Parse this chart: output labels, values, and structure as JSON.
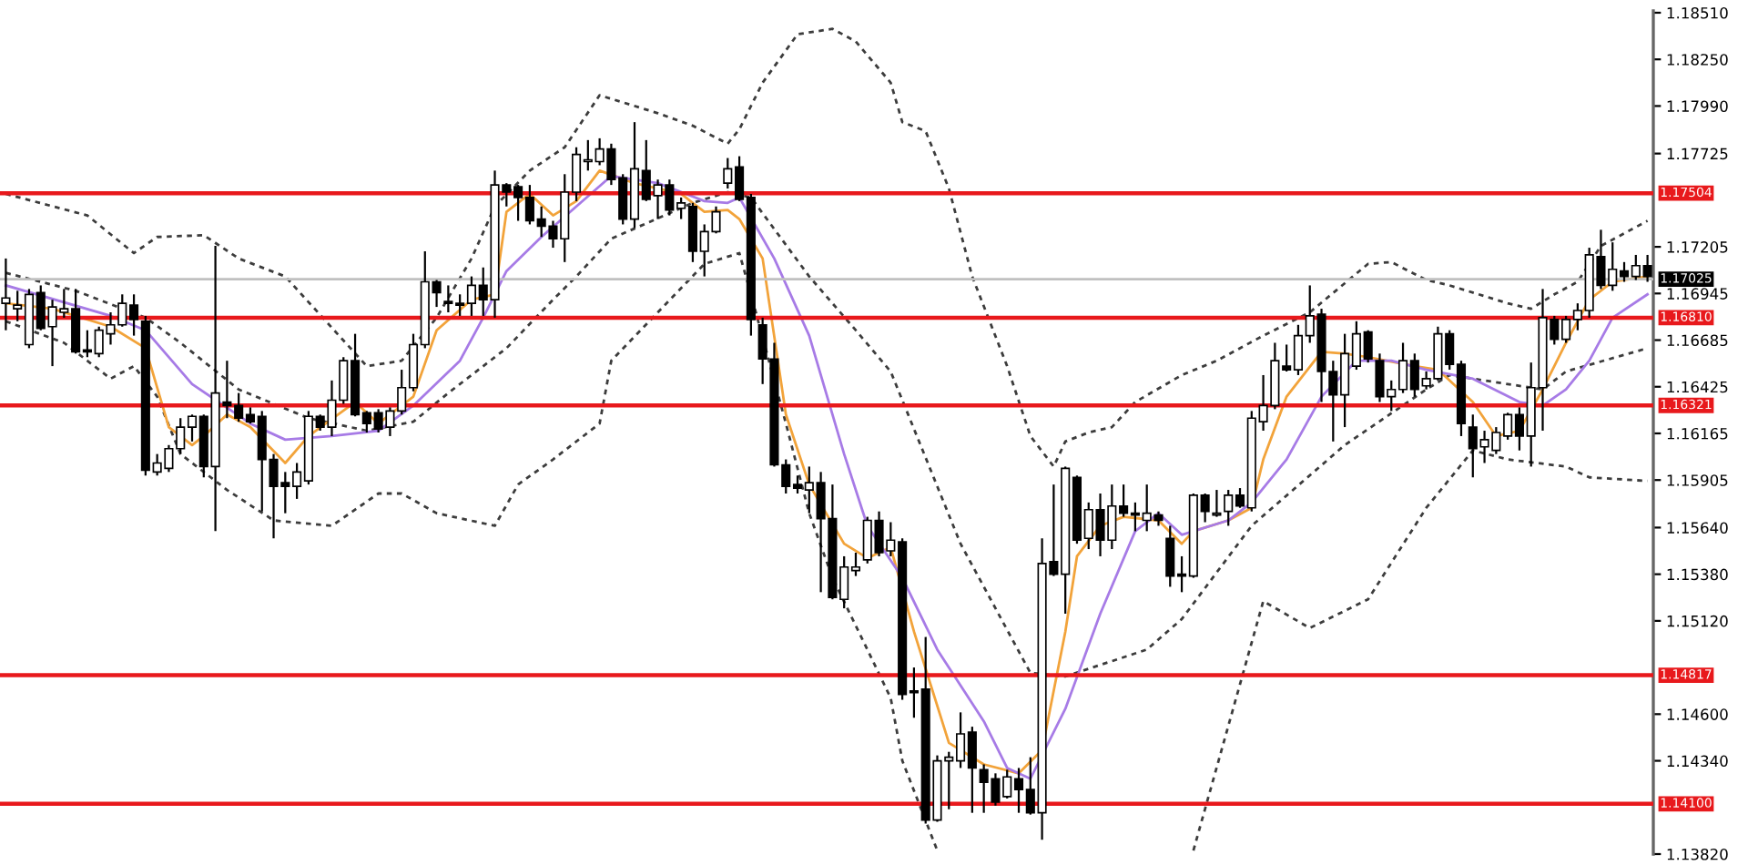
{
  "chart_data": {
    "type": "candlestick",
    "categories": [
      null,
      null,
      null,
      null,
      null,
      null,
      null,
      null,
      null,
      null,
      null,
      null,
      null,
      null,
      null,
      null,
      null,
      null,
      null,
      null,
      null,
      null,
      null,
      null,
      null,
      null,
      null,
      null,
      null,
      null,
      null,
      null,
      null,
      null,
      null,
      null,
      null,
      null,
      null,
      null,
      null,
      null,
      null,
      null,
      null,
      null,
      null,
      null,
      null,
      null,
      null,
      null,
      null,
      null,
      null,
      null,
      null,
      null,
      null,
      null,
      null,
      null,
      null,
      null,
      null,
      null,
      null,
      null,
      null,
      null,
      null,
      null,
      null,
      null,
      null,
      null,
      null,
      null,
      null,
      null,
      null,
      null,
      null,
      null,
      null,
      null,
      null,
      null,
      null,
      null,
      null,
      null,
      null,
      null,
      null,
      null,
      null,
      null,
      null,
      null,
      null,
      null,
      null,
      null,
      null,
      null,
      null,
      null,
      null,
      null,
      null,
      null,
      null,
      null,
      null,
      null,
      null,
      null,
      null,
      null,
      null,
      null,
      null,
      null,
      null,
      null,
      null,
      null,
      null,
      null,
      null,
      null,
      null,
      null,
      null,
      null,
      null,
      null,
      null,
      null,
      null,
      null
    ],
    "ohlc": [
      [
        1.1689,
        1.1714,
        1.1674,
        1.1692
      ],
      [
        1.1686,
        1.1696,
        1.1679,
        1.1688
      ],
      [
        1.1666,
        1.1697,
        1.1664,
        1.1694
      ],
      [
        1.1695,
        1.1699,
        1.1674,
        1.1675
      ],
      [
        1.1676,
        1.1691,
        1.1654,
        1.1687
      ],
      [
        1.1684,
        1.1697,
        1.1681,
        1.1686
      ],
      [
        1.1686,
        1.1697,
        1.1661,
        1.1662
      ],
      [
        1.1663,
        1.1674,
        1.1659,
        1.1662
      ],
      [
        1.1661,
        1.1676,
        1.1659,
        1.1674
      ],
      [
        1.1672,
        1.1684,
        1.1666,
        1.1677
      ],
      [
        1.1677,
        1.1694,
        1.1676,
        1.1689
      ],
      [
        1.1688,
        1.1694,
        1.1671,
        1.168
      ],
      [
        1.1679,
        1.1682,
        1.1593,
        1.1596
      ],
      [
        1.1595,
        1.1605,
        1.1593,
        1.16
      ],
      [
        1.1597,
        1.161,
        1.1595,
        1.1608
      ],
      [
        1.1608,
        1.1625,
        1.1605,
        1.162
      ],
      [
        1.162,
        1.1627,
        1.1612,
        1.1626
      ],
      [
        1.1626,
        1.1627,
        1.1592,
        1.1598
      ],
      [
        1.1598,
        1.1721,
        1.1562,
        1.1639
      ],
      [
        1.1634,
        1.1657,
        1.1625,
        1.1632
      ],
      [
        1.1632,
        1.1639,
        1.1623,
        1.1625
      ],
      [
        1.1627,
        1.1631,
        1.1622,
        1.1623
      ],
      [
        1.1626,
        1.1629,
        1.1573,
        1.1602
      ],
      [
        1.1602,
        1.1605,
        1.1558,
        1.1587
      ],
      [
        1.1589,
        1.1595,
        1.1572,
        1.1587
      ],
      [
        1.1587,
        1.16,
        1.158,
        1.1595
      ],
      [
        1.159,
        1.1629,
        1.1588,
        1.1626
      ],
      [
        1.1626,
        1.1627,
        1.1618,
        1.162
      ],
      [
        1.162,
        1.1646,
        1.1615,
        1.1635
      ],
      [
        1.1635,
        1.1659,
        1.1633,
        1.1657
      ],
      [
        1.1657,
        1.1672,
        1.1626,
        1.1627
      ],
      [
        1.1628,
        1.1629,
        1.1617,
        1.1622
      ],
      [
        1.1628,
        1.163,
        1.1617,
        1.1619
      ],
      [
        1.162,
        1.1631,
        1.1615,
        1.1629
      ],
      [
        1.1629,
        1.1652,
        1.1627,
        1.1642
      ],
      [
        1.1642,
        1.1672,
        1.164,
        1.1666
      ],
      [
        1.1666,
        1.1718,
        1.1664,
        1.1701
      ],
      [
        1.1701,
        1.1702,
        1.1687,
        1.1695
      ],
      [
        1.169,
        1.1699,
        1.1684,
        1.1689
      ],
      [
        1.1689,
        1.1694,
        1.1682,
        1.1688
      ],
      [
        1.1689,
        1.1704,
        1.1682,
        1.1699
      ],
      [
        1.1699,
        1.1709,
        1.1682,
        1.1691
      ],
      [
        1.1691,
        1.1763,
        1.1681,
        1.1755
      ],
      [
        1.1755,
        1.1756,
        1.1743,
        1.1751
      ],
      [
        1.1754,
        1.1755,
        1.1735,
        1.1748
      ],
      [
        1.1748,
        1.1755,
        1.1733,
        1.1735
      ],
      [
        1.1736,
        1.1743,
        1.1726,
        1.1732
      ],
      [
        1.1732,
        1.1735,
        1.172,
        1.1725
      ],
      [
        1.1725,
        1.1761,
        1.1712,
        1.1751
      ],
      [
        1.1751,
        1.1776,
        1.1746,
        1.1772
      ],
      [
        1.1768,
        1.178,
        1.1763,
        1.1769
      ],
      [
        1.1768,
        1.1781,
        1.1766,
        1.1775
      ],
      [
        1.1775,
        1.1778,
        1.1755,
        1.1758
      ],
      [
        1.1759,
        1.1761,
        1.1733,
        1.1736
      ],
      [
        1.1736,
        1.179,
        1.1731,
        1.1764
      ],
      [
        1.1763,
        1.178,
        1.1746,
        1.1747
      ],
      [
        1.1749,
        1.1758,
        1.1736,
        1.1755
      ],
      [
        1.1755,
        1.1758,
        1.1738,
        1.1741
      ],
      [
        1.1742,
        1.1748,
        1.1736,
        1.1745
      ],
      [
        1.1743,
        1.1745,
        1.1712,
        1.1718
      ],
      [
        1.1718,
        1.1733,
        1.1704,
        1.1729
      ],
      [
        1.1729,
        1.1743,
        1.1728,
        1.174
      ],
      [
        1.1756,
        1.177,
        1.1753,
        1.1764
      ],
      [
        1.1765,
        1.1771,
        1.1746,
        1.1747
      ],
      [
        1.1748,
        1.175,
        1.1671,
        1.168
      ],
      [
        1.1677,
        1.1681,
        1.1644,
        1.1658
      ],
      [
        1.1658,
        1.1667,
        1.1598,
        1.1599
      ],
      [
        1.1599,
        1.1602,
        1.1583,
        1.1587
      ],
      [
        1.1588,
        1.1593,
        1.1583,
        1.1586
      ],
      [
        1.1585,
        1.1598,
        1.1572,
        1.1589
      ],
      [
        1.1589,
        1.1595,
        1.1528,
        1.1569
      ],
      [
        1.1569,
        1.1588,
        1.1524,
        1.1525
      ],
      [
        1.1524,
        1.1548,
        1.1519,
        1.1542
      ],
      [
        1.154,
        1.155,
        1.1537,
        1.1542
      ],
      [
        1.1546,
        1.157,
        1.1544,
        1.1568
      ],
      [
        1.1568,
        1.1573,
        1.1548,
        1.155
      ],
      [
        1.1551,
        1.1567,
        1.1548,
        1.1557
      ],
      [
        1.1556,
        1.1558,
        1.1468,
        1.1471
      ],
      [
        1.1473,
        1.1486,
        1.1458,
        1.1472
      ],
      [
        1.1474,
        1.1503,
        1.1399,
        1.1401
      ],
      [
        1.1401,
        1.1437,
        1.14,
        1.1434
      ],
      [
        1.1434,
        1.1439,
        1.1407,
        1.1436
      ],
      [
        1.1434,
        1.1461,
        1.143,
        1.1449
      ],
      [
        1.145,
        1.1453,
        1.1405,
        1.143
      ],
      [
        1.1429,
        1.1432,
        1.1405,
        1.1422
      ],
      [
        1.1424,
        1.1427,
        1.1409,
        1.1411
      ],
      [
        1.1414,
        1.1429,
        1.1413,
        1.1425
      ],
      [
        1.1424,
        1.143,
        1.1405,
        1.1418
      ],
      [
        1.1418,
        1.1436,
        1.1404,
        1.1405
      ],
      [
        1.1405,
        1.1558,
        1.139,
        1.1544
      ],
      [
        1.1545,
        1.1588,
        1.1537,
        1.1538
      ],
      [
        1.1538,
        1.1598,
        1.1516,
        1.1597
      ],
      [
        1.1592,
        1.1593,
        1.1555,
        1.1557
      ],
      [
        1.1558,
        1.1578,
        1.1552,
        1.1574
      ],
      [
        1.1574,
        1.1583,
        1.1548,
        1.1557
      ],
      [
        1.1557,
        1.1588,
        1.1552,
        1.1576
      ],
      [
        1.1576,
        1.1588,
        1.157,
        1.1572
      ],
      [
        1.1572,
        1.1578,
        1.1562,
        1.1571
      ],
      [
        1.1568,
        1.1588,
        1.1562,
        1.1572
      ],
      [
        1.1571,
        1.1573,
        1.1565,
        1.1568
      ],
      [
        1.1558,
        1.1565,
        1.1531,
        1.1537
      ],
      [
        1.1538,
        1.1548,
        1.1528,
        1.1537
      ],
      [
        1.1537,
        1.1583,
        1.1536,
        1.1582
      ],
      [
        1.1582,
        1.1583,
        1.1567,
        1.1573
      ],
      [
        1.1571,
        1.1585,
        1.157,
        1.1572
      ],
      [
        1.1573,
        1.1585,
        1.1565,
        1.1582
      ],
      [
        1.1582,
        1.1586,
        1.1575,
        1.1576
      ],
      [
        1.1575,
        1.1629,
        1.1573,
        1.1625
      ],
      [
        1.1623,
        1.1649,
        1.1618,
        1.1632
      ],
      [
        1.1632,
        1.1667,
        1.163,
        1.1657
      ],
      [
        1.1654,
        1.1666,
        1.1651,
        1.1652
      ],
      [
        1.1652,
        1.1677,
        1.1649,
        1.1671
      ],
      [
        1.1671,
        1.1699,
        1.1667,
        1.1682
      ],
      [
        1.1683,
        1.1686,
        1.1634,
        1.1651
      ],
      [
        1.1651,
        1.1657,
        1.1612,
        1.1638
      ],
      [
        1.1638,
        1.1672,
        1.162,
        1.1661
      ],
      [
        1.1654,
        1.1679,
        1.1652,
        1.1672
      ],
      [
        1.1673,
        1.1674,
        1.1656,
        1.1658
      ],
      [
        1.1657,
        1.1661,
        1.1634,
        1.1637
      ],
      [
        1.1637,
        1.1646,
        1.1629,
        1.1641
      ],
      [
        1.1641,
        1.1667,
        1.1639,
        1.1657
      ],
      [
        1.1657,
        1.1661,
        1.1637,
        1.1641
      ],
      [
        1.1643,
        1.1651,
        1.1641,
        1.1647
      ],
      [
        1.1647,
        1.1676,
        1.1646,
        1.1672
      ],
      [
        1.1672,
        1.1674,
        1.1652,
        1.1655
      ],
      [
        1.1655,
        1.1657,
        1.1615,
        1.1622
      ],
      [
        1.162,
        1.1627,
        1.1592,
        1.1608
      ],
      [
        1.1609,
        1.1618,
        1.16,
        1.1613
      ],
      [
        1.1607,
        1.162,
        1.1605,
        1.1617
      ],
      [
        1.1615,
        1.1628,
        1.1613,
        1.1627
      ],
      [
        1.1627,
        1.1631,
        1.1607,
        1.1615
      ],
      [
        1.1615,
        1.1656,
        1.1598,
        1.1642
      ],
      [
        1.1642,
        1.1697,
        1.1618,
        1.1681
      ],
      [
        1.168,
        1.1682,
        1.1666,
        1.1669
      ],
      [
        1.1669,
        1.1682,
        1.1667,
        1.168
      ],
      [
        1.168,
        1.1689,
        1.1674,
        1.1685
      ],
      [
        1.1685,
        1.172,
        1.1681,
        1.1716
      ],
      [
        1.1715,
        1.173,
        1.1697,
        1.1699
      ],
      [
        1.1699,
        1.1723,
        1.1696,
        1.1708
      ],
      [
        1.1707,
        1.1712,
        1.1701,
        1.1704
      ],
      [
        1.1704,
        1.1716,
        1.1702,
        1.171
      ],
      [
        1.171,
        1.1716,
        1.1701,
        1.1704
      ]
    ],
    "series": [
      {
        "type": "line",
        "color": "#3c3c3c",
        "line_style": "dotted",
        "values": [
          1.175,
          null,
          null,
          null,
          null,
          null,
          null,
          1.1738,
          null,
          null,
          null,
          1.1717,
          null,
          1.1726,
          null,
          null,
          null,
          1.1727,
          null,
          null,
          1.1714,
          null,
          null,
          null,
          1.1704,
          null,
          null,
          null,
          null,
          null,
          null,
          1.1654,
          null,
          null,
          1.1657,
          null,
          null,
          1.1681,
          null,
          null,
          1.1714,
          null,
          1.1743,
          null,
          null,
          1.1763,
          null,
          null,
          1.1776,
          null,
          null,
          1.1805,
          null,
          null,
          null,
          null,
          1.1795,
          null,
          null,
          1.1788,
          null,
          null,
          1.1778,
          1.1786,
          null,
          1.1812,
          null,
          null,
          1.1839,
          null,
          null,
          1.1842,
          null,
          1.1835,
          null,
          null,
          1.1812,
          1.179,
          null,
          1.1785,
          null,
          1.1753,
          null,
          1.1704,
          null,
          null,
          1.1654,
          null,
          1.1615,
          null,
          1.1598,
          1.1612,
          null,
          1.1617,
          null,
          1.162,
          null,
          1.1634,
          null,
          null,
          null,
          1.1649,
          null,
          null,
          1.1657,
          null,
          null,
          null,
          1.1671,
          null,
          null,
          null,
          1.1684,
          null,
          null,
          null,
          null,
          1.1711,
          null,
          1.1712,
          null,
          null,
          1.1702,
          null,
          1.1699,
          null,
          null,
          null,
          null,
          1.1689,
          null,
          1.1686,
          null,
          1.1694,
          null,
          1.1701,
          null,
          1.1721,
          null,
          null,
          null,
          1.1735
        ]
      },
      {
        "type": "line",
        "color": "#3c3c3c",
        "line_style": "dotted",
        "values": [
          1.1706,
          null,
          null,
          null,
          null,
          null,
          1.1696,
          null,
          null,
          null,
          null,
          null,
          1.1681,
          null,
          null,
          1.1667,
          null,
          null,
          null,
          null,
          1.1641,
          null,
          null,
          null,
          null,
          null,
          1.1625,
          null,
          null,
          null,
          null,
          1.1618,
          null,
          null,
          null,
          1.1623,
          null,
          null,
          1.1639,
          null,
          null,
          null,
          null,
          1.1664,
          null,
          null,
          null,
          1.1691,
          null,
          1.1704,
          null,
          null,
          1.1725,
          null,
          null,
          null,
          null,
          null,
          null,
          1.1745,
          null,
          null,
          1.1751,
          null,
          1.1748,
          null,
          null,
          null,
          null,
          1.1704,
          null,
          null,
          null,
          1.1674,
          null,
          null,
          1.1651,
          null,
          null,
          null,
          null,
          null,
          1.1555,
          null,
          null,
          null,
          null,
          null,
          1.1483,
          null,
          null,
          1.1481,
          null,
          null,
          null,
          null,
          null,
          null,
          1.1496,
          null,
          null,
          1.1513,
          null,
          null,
          null,
          null,
          null,
          1.1565,
          null,
          null,
          null,
          null,
          null,
          null,
          null,
          1.161,
          null,
          null,
          null,
          null,
          null,
          null,
          1.1641,
          null,
          1.1649,
          null,
          null,
          null,
          null,
          1.1644,
          null,
          null,
          1.1641,
          null,
          1.1651,
          null,
          null,
          null,
          null,
          null,
          null,
          1.1664
        ]
      },
      {
        "type": "line",
        "color": "#3c3c3c",
        "line_style": "dotted",
        "values": [
          1.1679,
          null,
          null,
          null,
          null,
          1.1667,
          null,
          null,
          null,
          1.1647,
          null,
          1.1654,
          null,
          1.1637,
          null,
          1.1605,
          null,
          null,
          null,
          1.1585,
          null,
          null,
          null,
          1.1568,
          null,
          null,
          null,
          null,
          1.1565,
          null,
          null,
          null,
          1.1583,
          null,
          1.1583,
          null,
          null,
          1.1572,
          null,
          null,
          null,
          null,
          1.1565,
          null,
          1.1588,
          null,
          null,
          1.1602,
          null,
          null,
          null,
          1.1622,
          1.1657,
          null,
          null,
          null,
          1.1684,
          null,
          null,
          null,
          1.1711,
          null,
          null,
          1.1717,
          1.1694,
          null,
          null,
          1.1622,
          null,
          1.1572,
          null,
          1.1536,
          null,
          null,
          1.1496,
          null,
          1.1469,
          1.1434,
          null,
          null,
          1.1384,
          null,
          null,
          null,
          null,
          null,
          null,
          null,
          null,
          null,
          null,
          null,
          null,
          null,
          null,
          null,
          null,
          null,
          null,
          null,
          null,
          null,
          null,
          null,
          null,
          null,
          null,
          null,
          null,
          null,
          null,
          null,
          null,
          null,
          null,
          null,
          null,
          null,
          null,
          null,
          null,
          null,
          null,
          null,
          null,
          null,
          null,
          null,
          null,
          null,
          null,
          null,
          null,
          null,
          null,
          null,
          null,
          null,
          null,
          null,
          null,
          null
        ]
      },
      {
        "type": "line",
        "color": "#3c3c3c",
        "line_style": "dotted",
        "values": [
          null,
          null,
          null,
          null,
          null,
          null,
          null,
          null,
          null,
          null,
          null,
          null,
          null,
          null,
          null,
          null,
          null,
          null,
          null,
          null,
          null,
          null,
          null,
          null,
          null,
          null,
          null,
          null,
          null,
          null,
          null,
          null,
          null,
          null,
          null,
          null,
          null,
          null,
          null,
          null,
          null,
          null,
          null,
          null,
          null,
          null,
          null,
          null,
          null,
          null,
          null,
          null,
          null,
          null,
          null,
          null,
          null,
          null,
          null,
          null,
          null,
          null,
          null,
          null,
          null,
          null,
          null,
          null,
          null,
          null,
          null,
          null,
          null,
          null,
          null,
          null,
          null,
          null,
          null,
          null,
          null,
          null,
          null,
          null,
          null,
          null,
          null,
          null,
          null,
          null,
          null,
          null,
          null,
          null,
          null,
          null,
          null,
          null,
          null,
          null,
          null,
          null,
          1.1384,
          null,
          null,
          null,
          null,
          null,
          1.1523,
          null,
          null,
          null,
          1.1508,
          null,
          null,
          null,
          null,
          1.1524,
          null,
          null,
          null,
          null,
          1.1575,
          null,
          null,
          null,
          1.1607,
          null,
          null,
          1.1602,
          null,
          null,
          null,
          null,
          1.1598,
          null,
          1.1592,
          null,
          null,
          null,
          null,
          1.159
        ]
      },
      {
        "type": "line",
        "color": "#f2a33a",
        "values": [
          1.1689,
          null,
          null,
          null,
          1.1686,
          null,
          null,
          null,
          null,
          1.1676,
          null,
          null,
          1.1664,
          null,
          1.162,
          null,
          1.161,
          1.1615,
          null,
          1.1627,
          null,
          1.162,
          null,
          null,
          1.16,
          null,
          1.1615,
          null,
          null,
          null,
          1.1634,
          null,
          1.1622,
          null,
          null,
          1.1637,
          null,
          1.1674,
          null,
          null,
          1.1691,
          null,
          1.1694,
          1.174,
          null,
          1.175,
          null,
          1.1738,
          null,
          1.1746,
          null,
          1.1763,
          null,
          null,
          1.1756,
          null,
          null,
          null,
          1.175,
          null,
          1.174,
          null,
          1.1741,
          1.1736,
          null,
          1.1714,
          null,
          1.1627,
          null,
          1.1588,
          null,
          null,
          1.1555,
          null,
          1.1547,
          null,
          1.1553,
          null,
          1.1506,
          null,
          null,
          1.1444,
          null,
          null,
          1.1432,
          null,
          null,
          1.1427,
          null,
          1.144,
          null,
          1.1506,
          1.1548,
          null,
          1.1565,
          null,
          1.157,
          null,
          null,
          1.1568,
          null,
          1.1555,
          1.1562,
          null,
          null,
          1.1568,
          null,
          1.1575,
          1.1602,
          null,
          1.1637,
          null,
          null,
          1.1662,
          null,
          1.1661,
          null,
          1.1659,
          null,
          null,
          null,
          1.1654,
          null,
          1.1652,
          null,
          null,
          1.1634,
          null,
          1.1615,
          null,
          1.1618,
          null,
          1.1641,
          null,
          1.1667,
          null,
          1.1691,
          null,
          1.1701,
          null,
          null,
          1.1704
        ]
      },
      {
        "type": "line",
        "color": "#a77be6",
        "values": [
          1.1699,
          null,
          null,
          null,
          null,
          null,
          null,
          null,
          null,
          1.1682,
          null,
          null,
          1.1674,
          null,
          null,
          null,
          1.1644,
          null,
          null,
          null,
          null,
          1.1622,
          null,
          null,
          1.1613,
          null,
          null,
          null,
          1.1615,
          null,
          null,
          null,
          1.1618,
          null,
          null,
          1.1632,
          null,
          null,
          null,
          1.1657,
          null,
          1.1681,
          null,
          1.1707,
          null,
          null,
          1.1726,
          null,
          null,
          1.1743,
          null,
          null,
          1.176,
          null,
          null,
          null,
          1.1756,
          null,
          null,
          null,
          1.1746,
          null,
          1.1745,
          1.1748,
          null,
          null,
          1.1714,
          null,
          null,
          1.1671,
          null,
          null,
          1.1605,
          null,
          1.1565,
          null,
          null,
          1.1536,
          null,
          null,
          1.1496,
          null,
          null,
          null,
          1.1456,
          null,
          1.143,
          null,
          1.1424,
          null,
          null,
          1.1463,
          null,
          null,
          1.1516,
          null,
          null,
          1.1562,
          null,
          1.1572,
          null,
          1.156,
          null,
          null,
          null,
          1.1568,
          null,
          1.1578,
          null,
          null,
          1.1602,
          null,
          null,
          1.1637,
          null,
          null,
          1.1657,
          null,
          null,
          1.1657,
          null,
          null,
          1.1652,
          null,
          null,
          null,
          1.1647,
          null,
          null,
          null,
          1.1634,
          null,
          1.1632,
          null,
          1.1641,
          null,
          1.1657,
          null,
          1.1681,
          null,
          null,
          1.1694
        ]
      }
    ],
    "ylim": [
      1.1382,
      1.1852
    ],
    "yticks": [
      {
        "value": 1.1851,
        "label": "1.18510"
      },
      {
        "value": 1.1825,
        "label": "1.18250"
      },
      {
        "value": 1.1799,
        "label": "1.17990"
      },
      {
        "value": 1.17725,
        "label": "1.17725"
      },
      {
        "value": 1.17205,
        "label": "1.17205"
      },
      {
        "value": 1.16945,
        "label": "1.16945"
      },
      {
        "value": 1.16685,
        "label": "1.16685"
      },
      {
        "value": 1.16425,
        "label": "1.16425"
      },
      {
        "value": 1.16165,
        "label": "1.16165"
      },
      {
        "value": 1.15905,
        "label": "1.15905"
      },
      {
        "value": 1.1564,
        "label": "1.15640"
      },
      {
        "value": 1.1538,
        "label": "1.15380"
      },
      {
        "value": 1.1512,
        "label": "1.15120"
      },
      {
        "value": 1.146,
        "label": "1.14600"
      },
      {
        "value": 1.1434,
        "label": "1.14340"
      },
      {
        "value": 1.1382,
        "label": "1.13820"
      }
    ],
    "tick_labels": "y",
    "ref_lines": [
      {
        "axis": "y",
        "value": 1.17504,
        "label": "1.17504",
        "color": "#e8191c"
      },
      {
        "axis": "y",
        "value": 1.1681,
        "label": "1.16810",
        "color": "#e8191c"
      },
      {
        "axis": "y",
        "value": 1.16321,
        "label": "1.16321",
        "color": "#e8191c"
      },
      {
        "axis": "y",
        "value": 1.14817,
        "label": "1.14817",
        "color": "#e8191c"
      },
      {
        "axis": "y",
        "value": 1.141,
        "label": "1.14100",
        "color": "#e8191c"
      },
      {
        "axis": "y",
        "value": 1.17025,
        "label": "1.17025",
        "color": "#c0c0c0"
      }
    ]
  }
}
